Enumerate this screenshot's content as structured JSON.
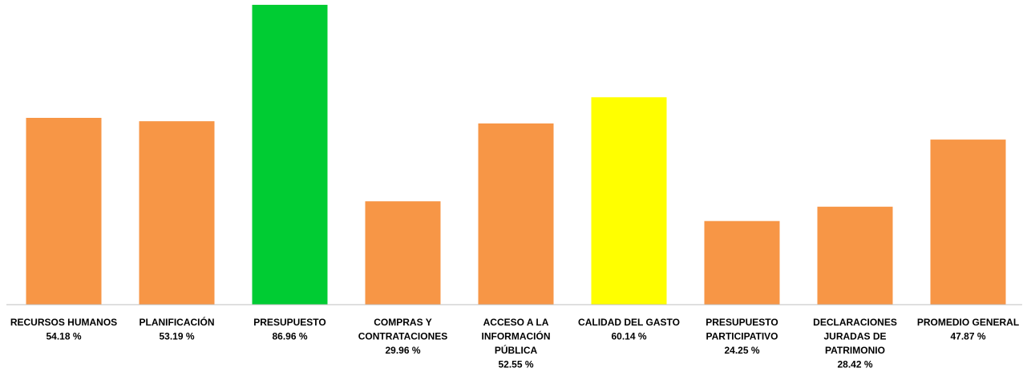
{
  "chart_data": {
    "type": "bar",
    "title": "",
    "xlabel": "",
    "ylabel": "",
    "ylim": [
      0,
      86.96
    ],
    "grid": false,
    "legend": "none",
    "categories": [
      [
        "RECURSOS HUMANOS"
      ],
      [
        "PLANIFICACIÓN"
      ],
      [
        "PRESUPUESTO"
      ],
      [
        "COMPRAS Y",
        "CONTRATACIONES"
      ],
      [
        "ACCESO A LA",
        "INFORMACIÓN",
        "PÚBLICA"
      ],
      [
        "CALIDAD DEL GASTO"
      ],
      [
        "PRESUPUESTO",
        "PARTICIPATIVO"
      ],
      [
        "DECLARACIONES",
        "JURADAS DE",
        "PATRIMONIO"
      ],
      [
        "PROMEDIO GENERAL"
      ]
    ],
    "value_labels": [
      "54.18 %",
      "53.19 %",
      "86.96 %",
      "29.96 %",
      "52.55 %",
      "60.14 %",
      "24.25 %",
      "28.42 %",
      "47.87 %"
    ],
    "values": [
      54.18,
      53.19,
      86.96,
      29.96,
      52.55,
      60.14,
      24.25,
      28.42,
      47.87
    ],
    "colors": [
      "#F79646",
      "#F79646",
      "#00CC33",
      "#F79646",
      "#F79646",
      "#FFFF00",
      "#F79646",
      "#F79646",
      "#F79646"
    ]
  }
}
